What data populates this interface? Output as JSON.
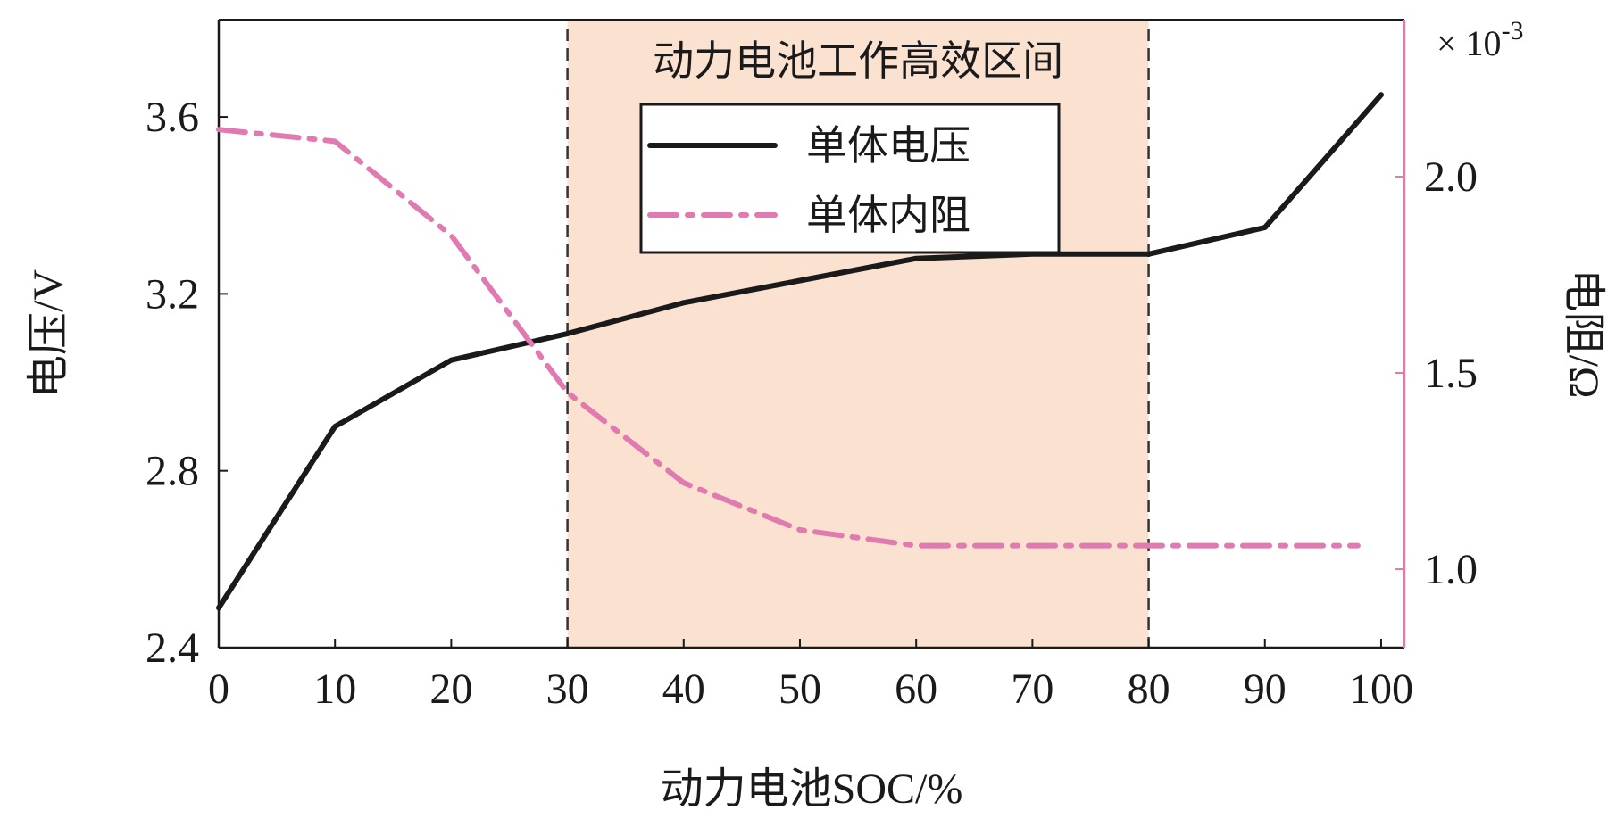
{
  "chart_data": {
    "type": "line",
    "title": "",
    "x": [
      0,
      10,
      20,
      30,
      40,
      50,
      60,
      70,
      80,
      90,
      100
    ],
    "xlim": [
      0,
      102
    ],
    "xticks": [
      0,
      10,
      20,
      30,
      40,
      50,
      60,
      70,
      80,
      90,
      100
    ],
    "xlabel": "动力电池SOC/%",
    "ylabel": "电压/V",
    "ylim": [
      2.4,
      3.82
    ],
    "yticks": [
      2.4,
      2.8,
      3.2,
      3.6
    ],
    "ytick_labels": [
      "2.4",
      "2.8",
      "3.2",
      "3.6"
    ],
    "y2label": "电阻/Ω",
    "y2lim": [
      0.8,
      2.4
    ],
    "y2ticks": [
      1.0,
      1.5,
      2.0
    ],
    "y2tick_labels": [
      "1.0",
      "1.5",
      "2.0"
    ],
    "y2_multiplier_label": "× 10",
    "y2_multiplier_exponent": "-3",
    "highlight_band": {
      "x_range": [
        30,
        80
      ],
      "label": "动力电池工作高效区间",
      "color": "#fbe1cf",
      "boundary_color": "#333333"
    },
    "series": [
      {
        "name": "单体电压",
        "axis": "left",
        "color": "#1a1a1a",
        "style": "solid",
        "x": [
          0,
          10,
          20,
          30,
          40,
          50,
          60,
          70,
          80,
          90,
          100
        ],
        "values": [
          2.49,
          2.9,
          3.05,
          3.11,
          3.18,
          3.23,
          3.28,
          3.29,
          3.29,
          3.35,
          3.65
        ]
      },
      {
        "name": "单体内阻",
        "axis": "right",
        "color": "#e07ab0",
        "style": "dashdot",
        "x": [
          0,
          10,
          20,
          30,
          40,
          50,
          60,
          70,
          80,
          90,
          98
        ],
        "values": [
          2.12,
          2.09,
          1.85,
          1.45,
          1.22,
          1.1,
          1.06,
          1.06,
          1.06,
          1.06,
          1.06
        ]
      }
    ],
    "legend": {
      "position": "top-center",
      "entries": [
        "单体电压",
        "单体内阻"
      ]
    }
  }
}
